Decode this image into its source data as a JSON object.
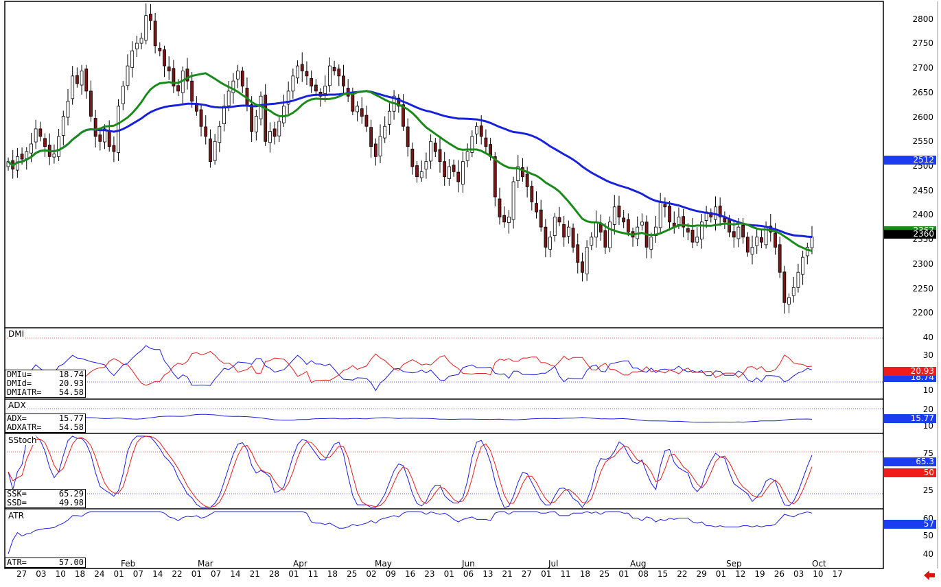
{
  "colors": {
    "up_candle": "#ffffff",
    "down_candle": "#7b1616",
    "candle_wick": "#000000",
    "ma_fast": "#1a8a1a",
    "ma_slow": "#1822d8",
    "blue_line": "#1c1ce0",
    "red_line": "#e01c1c",
    "last_price_tag": "#000000",
    "blue_tag": "#1c3cf0",
    "red_tag": "#f01c1c",
    "nav_arrow": "#e01010"
  },
  "price_panel": {
    "y_ticks": [
      "2800",
      "2750",
      "2700",
      "2650",
      "2600",
      "2550",
      "2500",
      "2450",
      "2400",
      "2350",
      "2300",
      "2250",
      "2200"
    ],
    "tags": {
      "ma_slow": "2512",
      "ma_fast": "2367",
      "last": "2360"
    }
  },
  "dmi_panel": {
    "title": "DMI",
    "readout": [
      {
        "label": "DMIu=",
        "value": "18.74"
      },
      {
        "label": "DMId=",
        "value": "20.93"
      },
      {
        "label": "DMIATR=",
        "value": "54.58"
      }
    ],
    "y_ticks": [
      "40",
      "30",
      "20",
      "10"
    ],
    "tags": {
      "red": "20.93",
      "blue": "18.74"
    }
  },
  "adx_panel": {
    "title": "ADX",
    "readout": [
      {
        "label": "ADX=",
        "value": "15.77"
      },
      {
        "label": "ADXATR=",
        "value": "54.58"
      }
    ],
    "y_ticks": [
      "20",
      "10"
    ],
    "tags": {
      "blue": "15.77"
    }
  },
  "stoch_panel": {
    "title": "SStoch",
    "readout": [
      {
        "label": "SSK=",
        "value": "65.29"
      },
      {
        "label": "SSD=",
        "value": "49.98"
      }
    ],
    "y_ticks": [
      "75",
      "50",
      "25"
    ],
    "tags": {
      "blue": "65.3",
      "red": "50"
    }
  },
  "atr_panel": {
    "title": "ATR",
    "readout": [
      {
        "label": "ATR=",
        "value": "57.00"
      }
    ],
    "y_ticks": [
      "60",
      "50",
      "40"
    ],
    "tags": {
      "blue": "57"
    }
  },
  "x_axis": {
    "months": [
      "Feb",
      "Mar",
      "Apr",
      "May",
      "Jun",
      "Jul",
      "Aug",
      "Sep",
      "Oct"
    ],
    "dates": [
      "27",
      "03",
      "10",
      "18",
      "24",
      "01",
      "07",
      "14",
      "22",
      "01",
      "07",
      "14",
      "21",
      "28",
      "01",
      "11",
      "18",
      "25",
      "02",
      "09",
      "16",
      "23",
      "01",
      "06",
      "13",
      "21",
      "27",
      "01",
      "11",
      "18",
      "25",
      "01",
      "08",
      "15",
      "22",
      "29",
      "01",
      "12",
      "19",
      "26",
      "03",
      "10",
      "17"
    ]
  },
  "chart_data": {
    "type": "candlestick",
    "price_range": [
      2180,
      2820
    ],
    "close_series": [
      2510,
      2495,
      2520,
      2515,
      2530,
      2545,
      2575,
      2560,
      2540,
      2520,
      2525,
      2560,
      2600,
      2630,
      2680,
      2665,
      2690,
      2650,
      2600,
      2560,
      2550,
      2575,
      2540,
      2530,
      2620,
      2660,
      2700,
      2730,
      2745,
      2755,
      2800,
      2790,
      2740,
      2730,
      2700,
      2690,
      2660,
      2650,
      2690,
      2670,
      2630,
      2610,
      2580,
      2560,
      2510,
      2550,
      2580,
      2620,
      2650,
      2670,
      2690,
      2660,
      2620,
      2570,
      2600,
      2640,
      2550,
      2570,
      2560,
      2590,
      2620,
      2650,
      2680,
      2700,
      2690,
      2680,
      2660,
      2650,
      2640,
      2660,
      2700,
      2690,
      2680,
      2660,
      2640,
      2610,
      2620,
      2600,
      2580,
      2540,
      2520,
      2560,
      2580,
      2610,
      2640,
      2620,
      2580,
      2540,
      2500,
      2480,
      2490,
      2510,
      2550,
      2530,
      2510,
      2480,
      2500,
      2490,
      2470,
      2510,
      2530,
      2560,
      2580,
      2560,
      2540,
      2520,
      2440,
      2400,
      2390,
      2400,
      2470,
      2500,
      2480,
      2460,
      2430,
      2410,
      2380,
      2340,
      2360,
      2400,
      2390,
      2360,
      2380,
      2340,
      2310,
      2290,
      2340,
      2360,
      2390,
      2370,
      2340,
      2390,
      2420,
      2400,
      2390,
      2370,
      2360,
      2380,
      2390,
      2340,
      2360,
      2380,
      2430,
      2420,
      2390,
      2380,
      2400,
      2380,
      2370,
      2350,
      2360,
      2390,
      2410,
      2400,
      2420,
      2400,
      2390,
      2370,
      2360,
      2380,
      2360,
      2330,
      2340,
      2360,
      2350,
      2380,
      2370,
      2340,
      2290,
      2230,
      2240,
      2260,
      2290,
      2320,
      2340,
      2360
    ],
    "ma_fast_range": [
      2360,
      2660
    ],
    "ma_slow_range": [
      2510,
      2590
    ],
    "dmi": {
      "range": [
        5,
        45
      ],
      "plus_last": 18.74,
      "minus_last": 20.93
    },
    "adx": {
      "range": [
        5,
        30
      ],
      "last": 15.77
    },
    "stoch": {
      "range": [
        0,
        100
      ],
      "k_last": 65.29,
      "d_last": 49.98,
      "levels": [
        75,
        25
      ]
    },
    "atr": {
      "range": [
        30,
        65
      ],
      "last": 57.0
    }
  }
}
